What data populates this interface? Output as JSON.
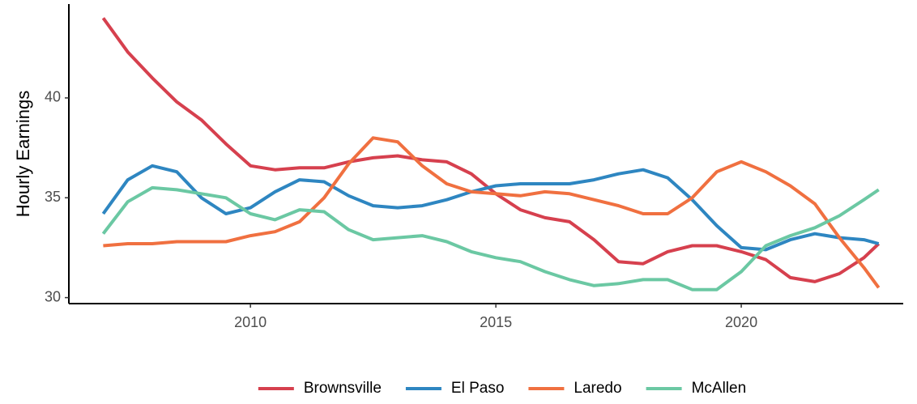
{
  "chart_data": {
    "type": "line",
    "y_label": "Hourly Earnings",
    "x": [
      2007,
      2007.5,
      2008,
      2008.5,
      2009,
      2009.5,
      2010,
      2010.5,
      2011,
      2011.5,
      2012,
      2012.5,
      2013,
      2013.5,
      2014,
      2014.5,
      2015,
      2015.5,
      2016,
      2016.5,
      2017,
      2017.5,
      2018,
      2018.5,
      2019,
      2019.5,
      2020,
      2020.5,
      2021,
      2021.5,
      2022,
      2022.5,
      2022.8
    ],
    "series": [
      {
        "name": "Brownsville",
        "color": "#d6404e",
        "values": [
          44.0,
          42.3,
          41.0,
          39.8,
          38.9,
          37.7,
          36.6,
          36.4,
          36.5,
          36.5,
          36.8,
          37.0,
          37.1,
          36.9,
          36.8,
          36.2,
          35.2,
          34.4,
          34.0,
          33.8,
          32.9,
          31.8,
          31.7,
          32.3,
          32.6,
          32.6,
          32.3,
          31.9,
          31.0,
          30.8,
          31.2,
          32.0,
          32.7
        ]
      },
      {
        "name": "El Paso",
        "color": "#2e86c1",
        "values": [
          34.2,
          35.9,
          36.6,
          36.3,
          35.0,
          34.2,
          34.5,
          35.3,
          35.9,
          35.8,
          35.1,
          34.6,
          34.5,
          34.6,
          34.9,
          35.3,
          35.6,
          35.7,
          35.7,
          35.7,
          35.9,
          36.2,
          36.4,
          36.0,
          34.9,
          33.6,
          32.5,
          32.4,
          32.9,
          33.2,
          33.0,
          32.9,
          32.7
        ]
      },
      {
        "name": "Laredo",
        "color": "#f07040",
        "values": [
          32.6,
          32.7,
          32.7,
          32.8,
          32.8,
          32.8,
          33.1,
          33.3,
          33.8,
          35.0,
          36.7,
          38.0,
          37.8,
          36.6,
          35.7,
          35.3,
          35.2,
          35.1,
          35.3,
          35.2,
          34.9,
          34.6,
          34.2,
          34.2,
          35.0,
          36.3,
          36.8,
          36.3,
          35.6,
          34.7,
          33.0,
          31.5,
          30.5
        ]
      },
      {
        "name": "McAllen",
        "color": "#6bc8a3",
        "values": [
          33.2,
          34.8,
          35.5,
          35.4,
          35.2,
          35.0,
          34.2,
          33.9,
          34.4,
          34.3,
          33.4,
          32.9,
          33.0,
          33.1,
          32.8,
          32.3,
          32.0,
          31.8,
          31.3,
          30.9,
          30.6,
          30.7,
          30.9,
          30.9,
          30.4,
          30.4,
          31.3,
          32.6,
          33.1,
          33.5,
          34.1,
          34.9,
          35.4
        ]
      }
    ],
    "xlim": [
      2006.3,
      2023.3
    ],
    "ylim": [
      29.7,
      44.7
    ],
    "xticks": [
      2010,
      2015,
      2020
    ],
    "yticks": [
      30,
      35,
      40
    ],
    "legend": "bottom"
  }
}
